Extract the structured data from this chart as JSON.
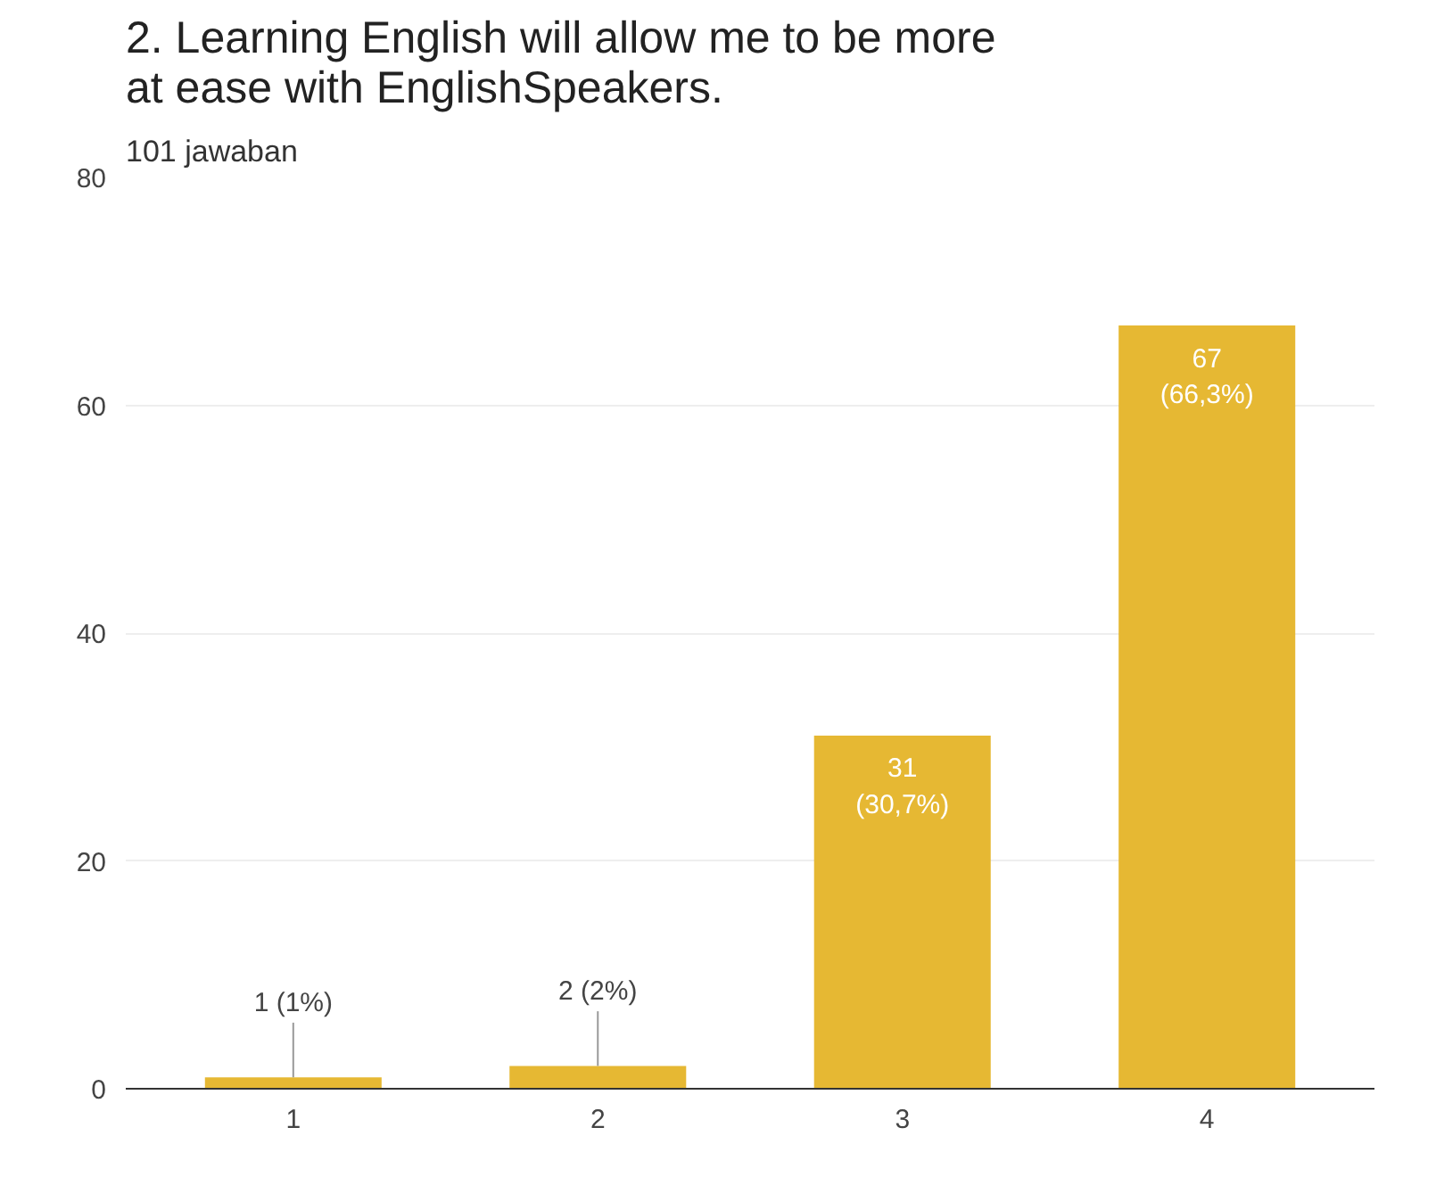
{
  "chart_data": {
    "type": "bar",
    "title": "2. Learning English will allow me to be more at ease with EnglishSpeakers.",
    "subtitle": "101 jawaban",
    "categories": [
      "1",
      "2",
      "3",
      "4"
    ],
    "values": [
      1,
      2,
      31,
      67
    ],
    "value_labels": [
      "1 (1%)",
      "2 (2%)",
      "31\n(30,7%)",
      "67\n(66,3%)"
    ],
    "color": "#e6b833",
    "ylim": [
      0,
      80
    ],
    "yticks": [
      0,
      20,
      40,
      60,
      80
    ],
    "grid": "y"
  }
}
